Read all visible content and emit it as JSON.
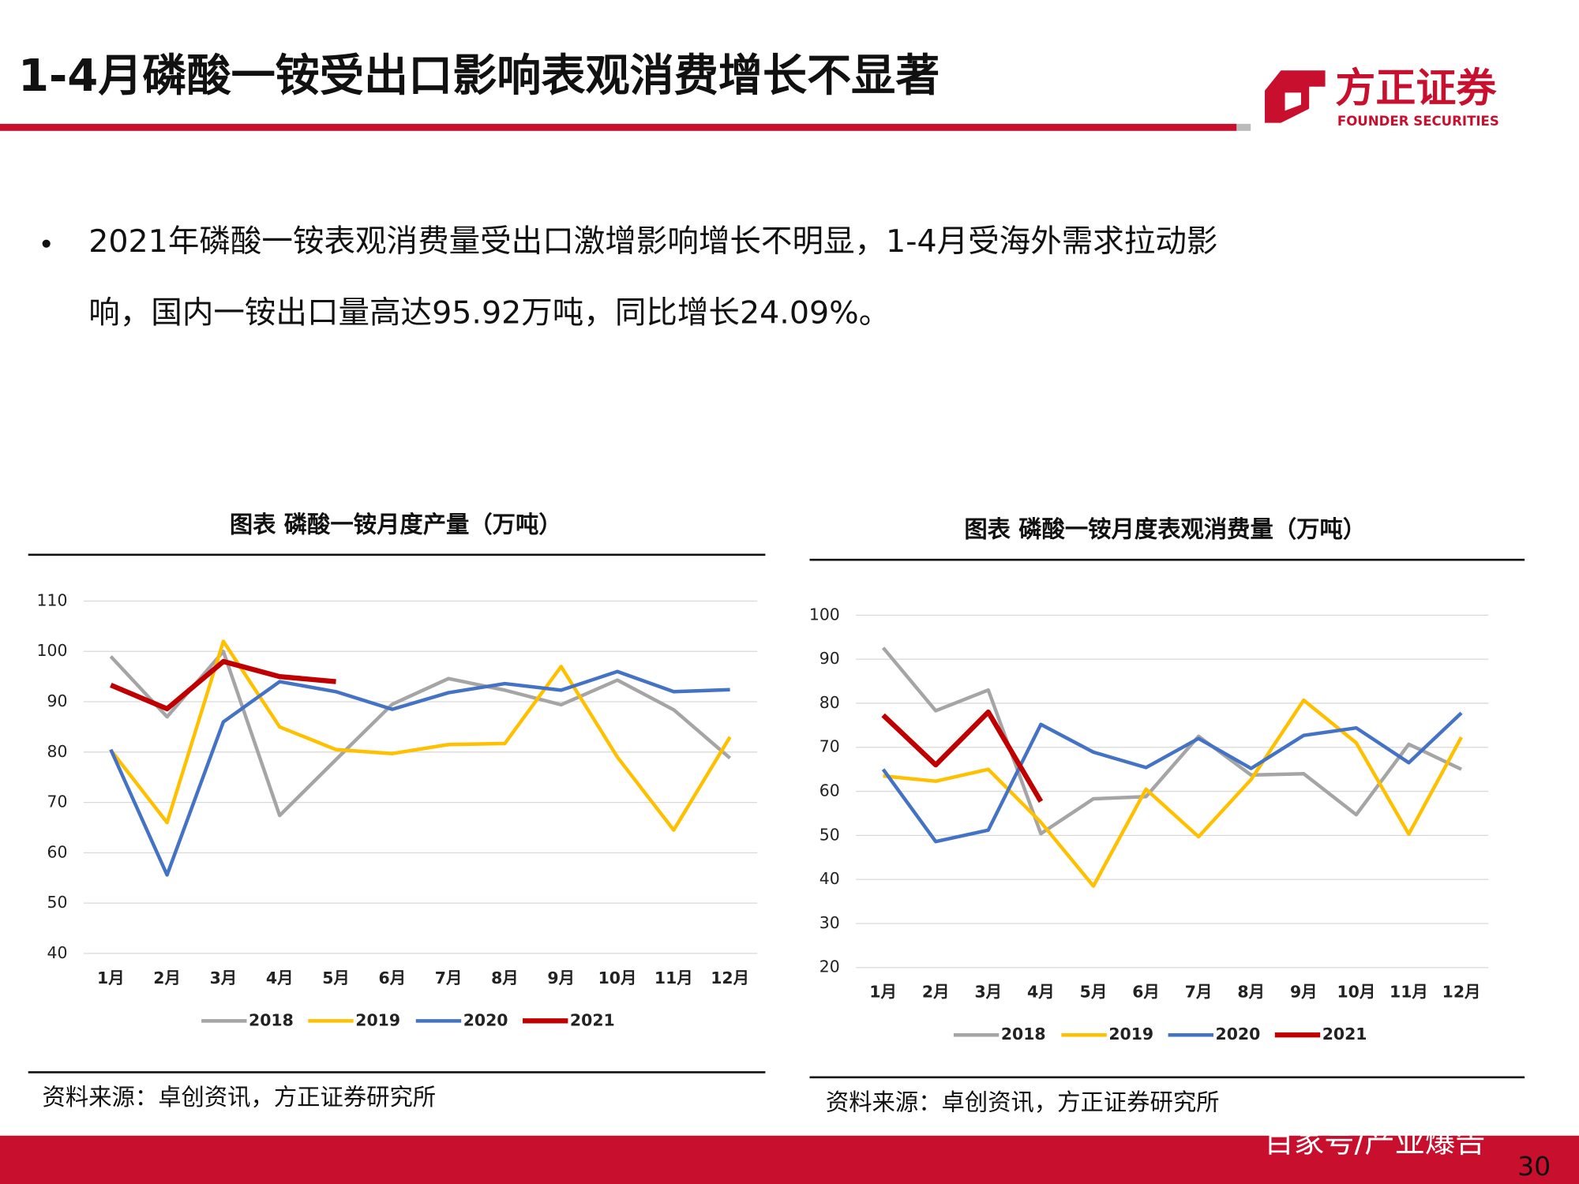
{
  "header": {
    "title": "1-4月磷酸一铵受出口影响表观消费增长不显著",
    "logo_cn": "方正证券",
    "logo_en": "FOUNDER SECURITIES"
  },
  "bullet_lines": [
    "2021年磷酸一铵表观消费量受出口激增影响增长不明显，1-4月受海外需求拉动影",
    "响，国内一铵出口量高达95.92万吨，同比增长24.09%。"
  ],
  "footer": {
    "watermark": "百家号/产业爆告",
    "page_number": "30"
  },
  "chart_data": [
    {
      "type": "line",
      "title": "图表 磷酸一铵月度产量（万吨）",
      "source": "资料来源：卓创资讯，方正证券研究所",
      "categories": [
        "1月",
        "2月",
        "3月",
        "4月",
        "5月",
        "6月",
        "7月",
        "8月",
        "9月",
        "10月",
        "11月",
        "12月"
      ],
      "ylim": [
        40,
        110
      ],
      "yticks": [
        40,
        50,
        60,
        70,
        80,
        90,
        100,
        110
      ],
      "grid": true,
      "legend": "bottom",
      "series": [
        {
          "name": "2018",
          "color": "#a5a5a5",
          "values": [
            99,
            87,
            100,
            67.4,
            78.5,
            89.5,
            94.6,
            92.3,
            89.4,
            94.3,
            88.4,
            78.8
          ]
        },
        {
          "name": "2019",
          "color": "#ffc000",
          "values": [
            80.4,
            66,
            102,
            85,
            80.5,
            79.7,
            81.5,
            81.7,
            97,
            79,
            64.5,
            83
          ]
        },
        {
          "name": "2020",
          "color": "#4472c4",
          "values": [
            80.5,
            55.6,
            86,
            94,
            92,
            88.5,
            91.8,
            93.6,
            92.3,
            96,
            92,
            92.4
          ]
        },
        {
          "name": "2021",
          "color": "#c00000",
          "values": [
            93.3,
            88.6,
            98,
            95,
            94,
            null,
            null,
            null,
            null,
            null,
            null,
            null
          ]
        }
      ]
    },
    {
      "type": "line",
      "title": "图表 磷酸一铵月度表观消费量（万吨）",
      "source": "资料来源：卓创资讯，方正证券研究所",
      "categories": [
        "1月",
        "2月",
        "3月",
        "4月",
        "5月",
        "6月",
        "7月",
        "8月",
        "9月",
        "10月",
        "11月",
        "12月"
      ],
      "ylim": [
        20,
        100
      ],
      "yticks": [
        20,
        30,
        40,
        50,
        60,
        70,
        80,
        90,
        100
      ],
      "grid": true,
      "legend": "bottom",
      "series": [
        {
          "name": "2018",
          "color": "#a5a5a5",
          "values": [
            92.6,
            78.3,
            83,
            50.4,
            58.3,
            58.8,
            72.5,
            63.7,
            64,
            54.7,
            70.7,
            65
          ]
        },
        {
          "name": "2019",
          "color": "#ffc000",
          "values": [
            63.5,
            62.3,
            65,
            53,
            38.5,
            60.5,
            49.7,
            62.7,
            80.7,
            71,
            50.3,
            72.3
          ]
        },
        {
          "name": "2020",
          "color": "#4472c4",
          "values": [
            65,
            48.6,
            51.2,
            75.2,
            68.9,
            65.4,
            72,
            65.2,
            72.7,
            74.4,
            66.5,
            77.8
          ]
        },
        {
          "name": "2021",
          "color": "#c00000",
          "values": [
            77.3,
            66,
            78,
            57.7,
            null,
            null,
            null,
            null,
            null,
            null,
            null,
            null
          ]
        }
      ]
    }
  ]
}
